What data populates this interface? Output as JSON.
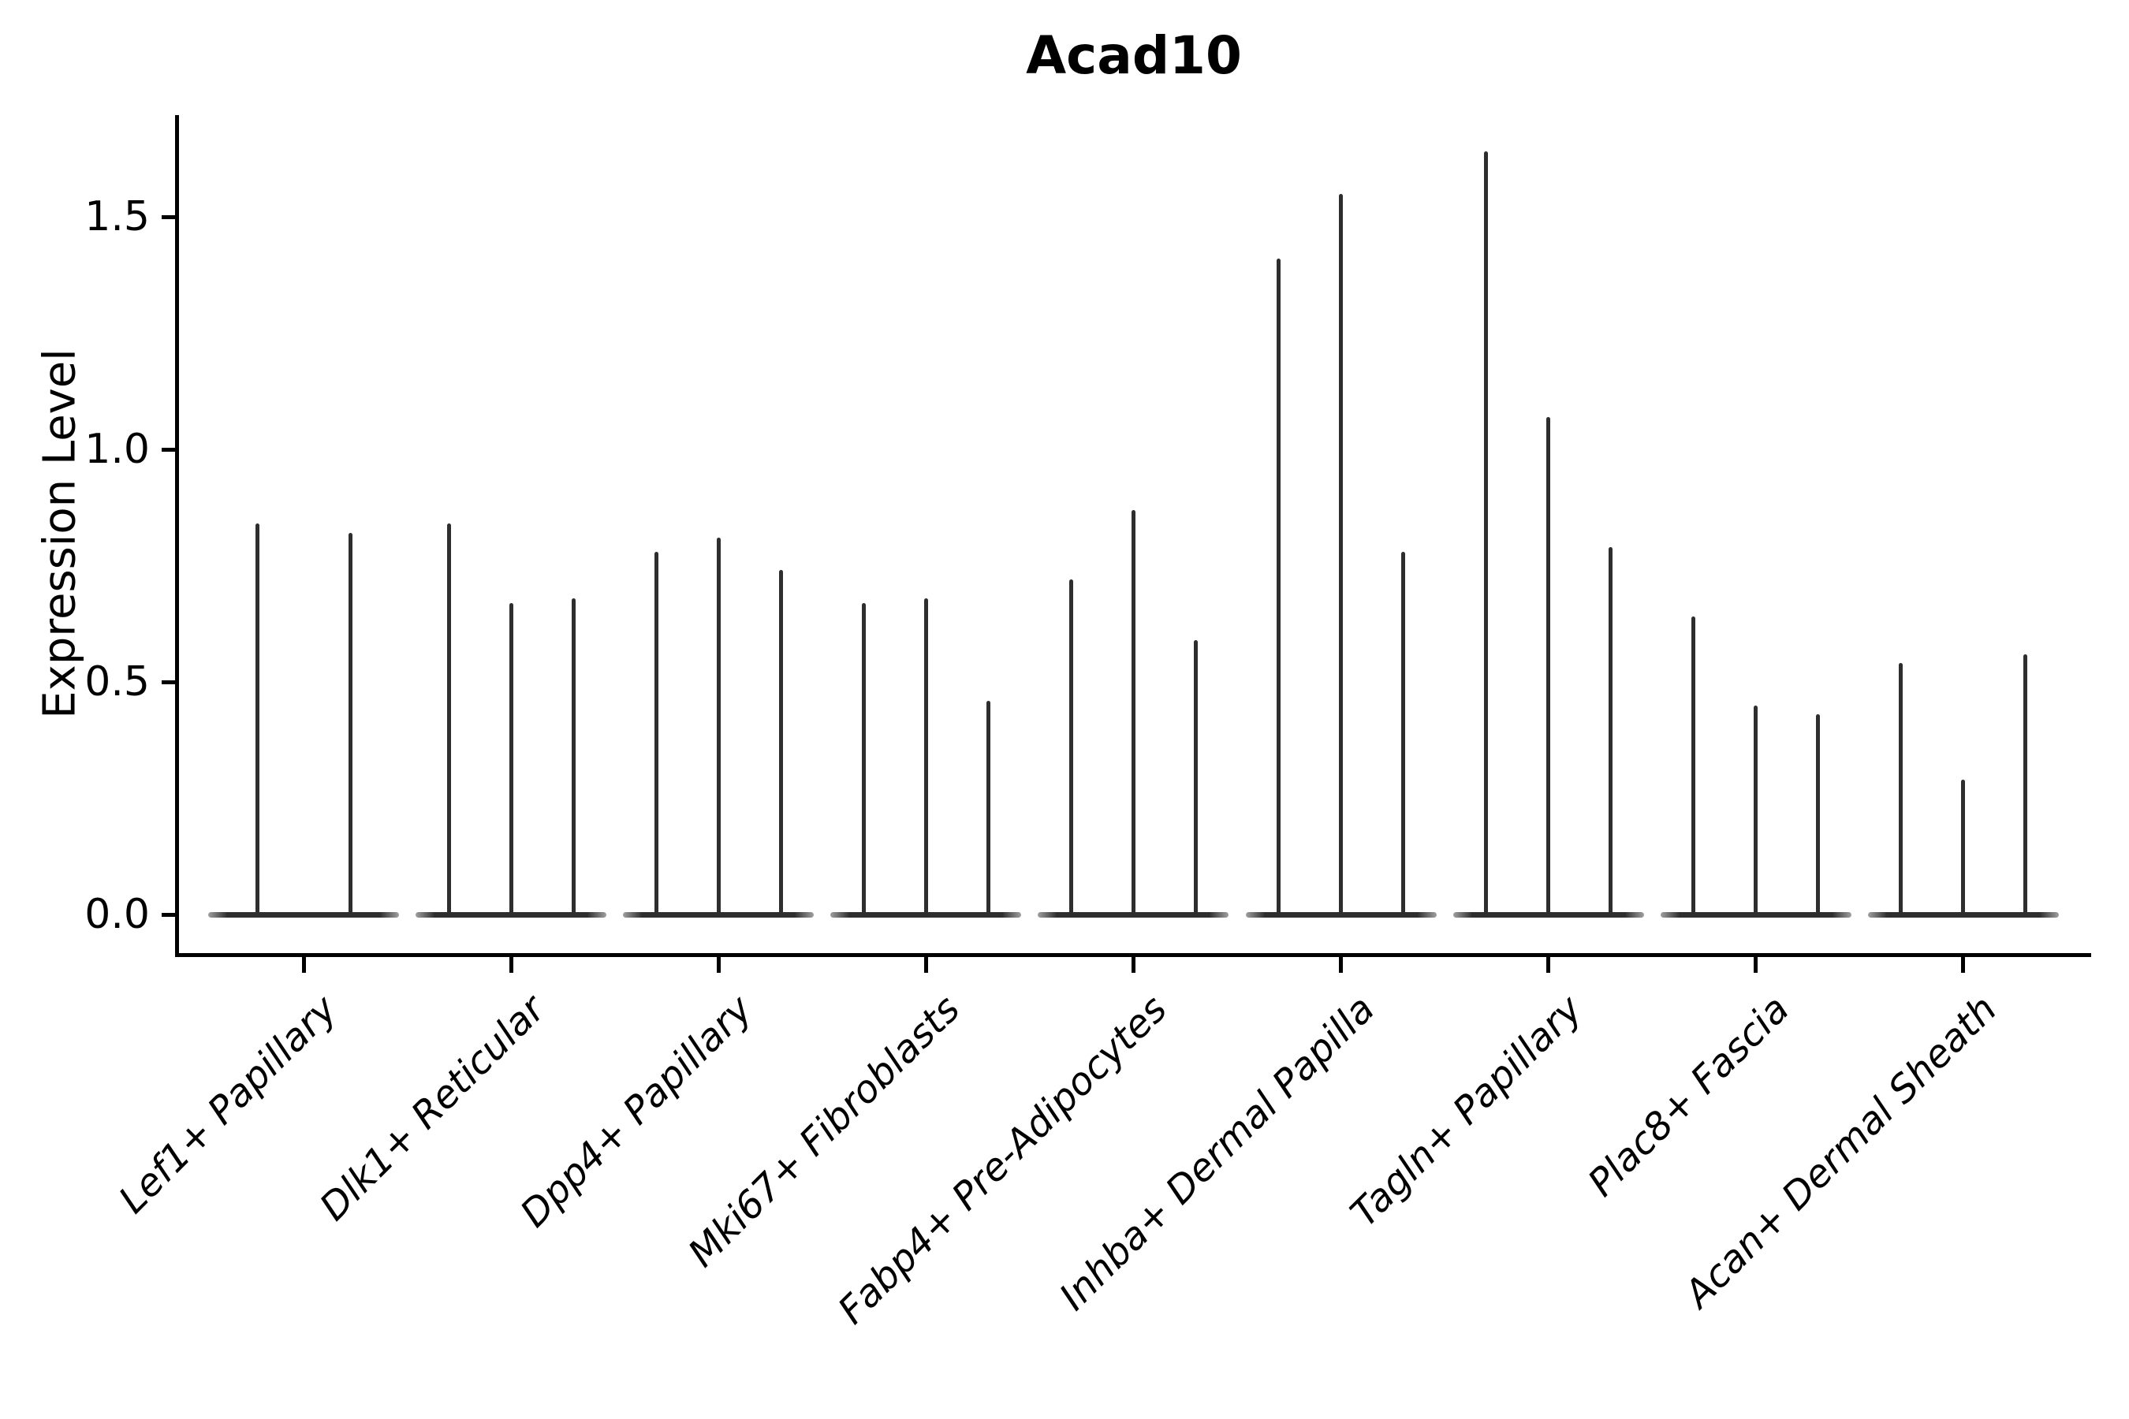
{
  "title": "Acad10",
  "colors": {
    "violin_line": "#2e2e2e",
    "axis": "#000000",
    "text": "#000000",
    "background": "#ffffff"
  },
  "chart_data": {
    "type": "violin",
    "title": "Acad10",
    "xlabel": "",
    "ylabel": "Expression Level",
    "ylim": [
      -0.06,
      1.72
    ],
    "y_ticks": [
      0.0,
      0.5,
      1.0,
      1.5
    ],
    "y_tick_labels": [
      "0.0",
      "0.5",
      "1.0",
      "1.5"
    ],
    "grid": false,
    "legend": "none",
    "x_tick_rotation_deg": 45,
    "categories": [
      "Lef1+ Papillary",
      "Dlk1+ Reticular",
      "Dpp4+ Papillary",
      "Mki67+ Fibroblasts",
      "Fabp4+ Pre-Adipocytes",
      "Inhba+ Dermal Papilla",
      "Tagln+ Papillary",
      "Plac8+ Fascia",
      "Acan+ Dermal Sheath"
    ],
    "groups": [
      {
        "label": "Lef1+ Papillary",
        "spike_values": [
          0.84,
          0.82
        ]
      },
      {
        "label": "Dlk1+ Reticular",
        "spike_values": [
          0.84,
          0.67,
          0.68
        ]
      },
      {
        "label": "Dpp4+ Papillary",
        "spike_values": [
          0.78,
          0.81,
          0.74
        ]
      },
      {
        "label": "Mki67+ Fibroblasts",
        "spike_values": [
          0.67,
          0.68,
          0.46
        ]
      },
      {
        "label": "Fabp4+ Pre-Adipocytes",
        "spike_values": [
          0.72,
          0.87,
          0.59
        ]
      },
      {
        "label": "Inhba+ Dermal Papilla",
        "spike_values": [
          1.41,
          1.55,
          0.78
        ]
      },
      {
        "label": "Tagln+ Papillary",
        "spike_values": [
          1.64,
          1.07,
          0.79
        ]
      },
      {
        "label": "Plac8+ Fascia",
        "spike_values": [
          0.64,
          0.45,
          0.43
        ]
      },
      {
        "label": "Acan+ Dermal Sheath",
        "spike_values": [
          0.54,
          0.29,
          0.56
        ]
      }
    ],
    "note_all_violins_concentrated_at_zero": true
  }
}
